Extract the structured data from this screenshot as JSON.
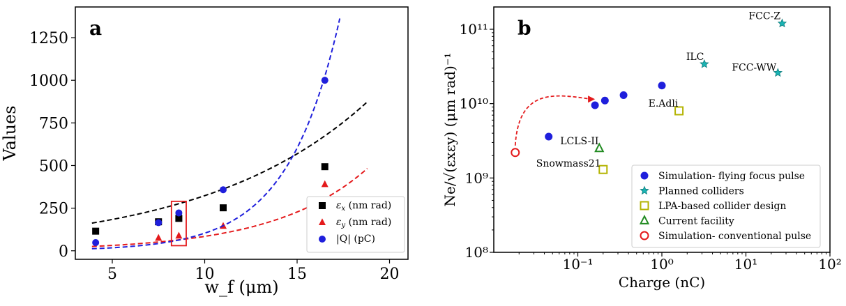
{
  "chart_data": [
    {
      "panel": "a",
      "type": "scatter",
      "xlabel": "w_f (μm)",
      "ylabel": "Values",
      "xlim": [
        3,
        21
      ],
      "ylim": [
        -50,
        1430
      ],
      "xticks": [
        5,
        10,
        15,
        20
      ],
      "yticks": [
        0,
        250,
        500,
        750,
        1000,
        1250
      ],
      "legend_position": "lower-right",
      "series": [
        {
          "name": "εx (nm rad)",
          "label_main": "ε",
          "label_sub": "x",
          "label_rest": " (nm rad)",
          "marker": "square",
          "color": "#000000",
          "x": [
            4.1,
            7.5,
            8.6,
            11.0,
            16.5
          ],
          "y": [
            115,
            170,
            190,
            252,
            493
          ],
          "fit": {
            "x": [
              3.9,
              18.8
            ],
            "a": 104.42,
            "b": 0.113
          }
        },
        {
          "name": "εy (nm rad)",
          "label_main": "ε",
          "label_sub": "y",
          "label_rest": " (nm rad)",
          "marker": "triangle",
          "color": "#e41a1c",
          "x": [
            7.5,
            8.6,
            11.0,
            16.5
          ],
          "y": [
            75,
            88,
            145,
            390
          ],
          "fit": {
            "x": [
              3.9,
              18.8
            ],
            "a": 11.67,
            "b": 0.198
          }
        },
        {
          "name": "|Q| (pC)",
          "label_main": "|Q|",
          "label_sub": "",
          "label_rest": " (pC)",
          "marker": "circle",
          "color": "#1f1fdc",
          "x": [
            4.1,
            7.5,
            8.6,
            11.0,
            16.5
          ],
          "y": [
            48,
            165,
            222,
            358,
            1000
          ],
          "fit": {
            "x": [
              3.9,
              18.8
            ],
            "a": 3.024,
            "b": 0.353
          }
        }
      ],
      "highlight_box": {
        "x": [
          8.2,
          9.0
        ],
        "y": [
          30,
          290
        ]
      }
    },
    {
      "panel": "b",
      "type": "scatter",
      "xscale": "log",
      "yscale": "log",
      "xlabel": "Charge (nC)",
      "ylabel": "Ne/√(εxεy) (μm rad)⁻¹",
      "xlim_log10": [
        -2.0,
        2.0
      ],
      "ylim_log10": [
        8.0,
        11.3
      ],
      "xticks": [
        "10⁻¹",
        "10⁰",
        "10¹",
        "10²"
      ],
      "yticks": [
        "10⁸",
        "10⁹",
        "10¹⁰",
        "10¹¹"
      ],
      "legend_position": "lower-right",
      "series": [
        {
          "name": "Simulation- flying focus pulse",
          "marker": "circle",
          "color": "#1f1fdc",
          "x": [
            0.045,
            0.16,
            0.21,
            0.35,
            1.0
          ],
          "y": [
            3600000000.0,
            9500000000.0,
            11000000000.0,
            13000000000.0,
            17500000000.0
          ]
        },
        {
          "name": "Planned colliders",
          "marker": "star",
          "color": "#1ab3b3",
          "x": [
            27,
            3.2,
            24
          ],
          "y": [
            120000000000.0,
            34000000000.0,
            26000000000.0
          ],
          "labels": [
            "FCC-Z",
            "ILC",
            "FCC-WW"
          ]
        },
        {
          "name": "LPA-based collider design",
          "marker": "square-open",
          "color": "#b3b300",
          "x": [
            1.6,
            0.2
          ],
          "y": [
            8000000000.0,
            1300000000.0
          ],
          "labels": [
            "E.Adli",
            "Snowmass21"
          ]
        },
        {
          "name": "Current facility",
          "marker": "triangle-open",
          "color": "#228b22",
          "x": [
            0.18
          ],
          "y": [
            2500000000.0
          ],
          "labels": [
            "LCLS-II"
          ]
        },
        {
          "name": "Simulation- conventional pulse",
          "marker": "circle-open",
          "color": "#e41a1c",
          "x": [
            0.018
          ],
          "y": [
            2200000000.0
          ]
        }
      ],
      "arrow": {
        "from": [
          0.018,
          2200000000.0
        ],
        "to": [
          0.16,
          11500000000.0
        ],
        "style": "dashed",
        "color": "#e41a1c"
      }
    }
  ]
}
